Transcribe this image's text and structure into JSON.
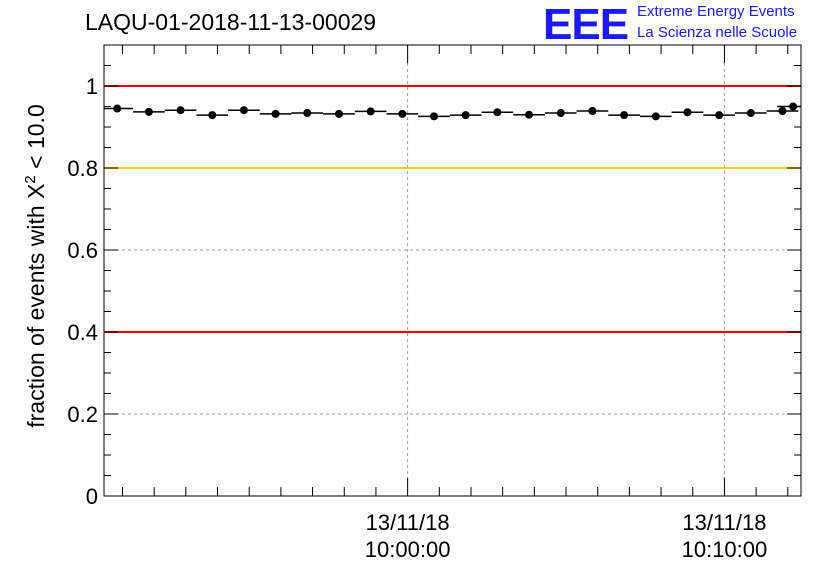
{
  "title": "LAQU-01-2018-11-13-00029",
  "logo": {
    "mark": "EEE",
    "line1": "Extreme Energy Events",
    "line2": "La Scienza nelle Scuole"
  },
  "chart_data": {
    "type": "scatter",
    "title": "LAQU-01-2018-11-13-00029",
    "ylabel": {
      "pre": "fraction of events with ",
      "chi": "X",
      "sup": "2",
      "post": " < 10.0"
    },
    "ylim": [
      0,
      1.1
    ],
    "yticks": [
      0,
      0.2,
      0.4,
      0.6,
      0.8,
      1
    ],
    "ytick_labels": [
      "0",
      "0.2",
      "0.4",
      "0.6",
      "0.8",
      "1"
    ],
    "xlim": [
      "09:50:25",
      "10:12:25"
    ],
    "xticks": [
      {
        "t": "10:00:00",
        "line1": "13/11/18",
        "line2": "10:00:00"
      },
      {
        "t": "10:10:00",
        "line1": "13/11/18",
        "line2": "10:10:00"
      }
    ],
    "grid": true,
    "reference_lines": [
      {
        "y": 1.0,
        "color": "#ff0000"
      },
      {
        "y": 0.8,
        "color": "#ffcc00"
      },
      {
        "y": 0.4,
        "color": "#ff0000"
      }
    ],
    "bin_width_seconds": 60,
    "x": [
      "09:50:50",
      "09:51:50",
      "09:52:50",
      "09:53:50",
      "09:54:50",
      "09:55:50",
      "09:56:50",
      "09:57:50",
      "09:58:50",
      "09:59:50",
      "10:00:50",
      "10:01:50",
      "10:02:50",
      "10:03:50",
      "10:04:50",
      "10:05:50",
      "10:06:50",
      "10:07:50",
      "10:08:50",
      "10:09:50",
      "10:10:50",
      "10:11:50",
      "10:12:10"
    ],
    "y": [
      0.945,
      0.937,
      0.941,
      0.929,
      0.941,
      0.932,
      0.934,
      0.932,
      0.938,
      0.932,
      0.926,
      0.929,
      0.936,
      0.93,
      0.934,
      0.939,
      0.929,
      0.926,
      0.936,
      0.929,
      0.934,
      0.939,
      0.95
    ],
    "marker_color": "#000000"
  }
}
